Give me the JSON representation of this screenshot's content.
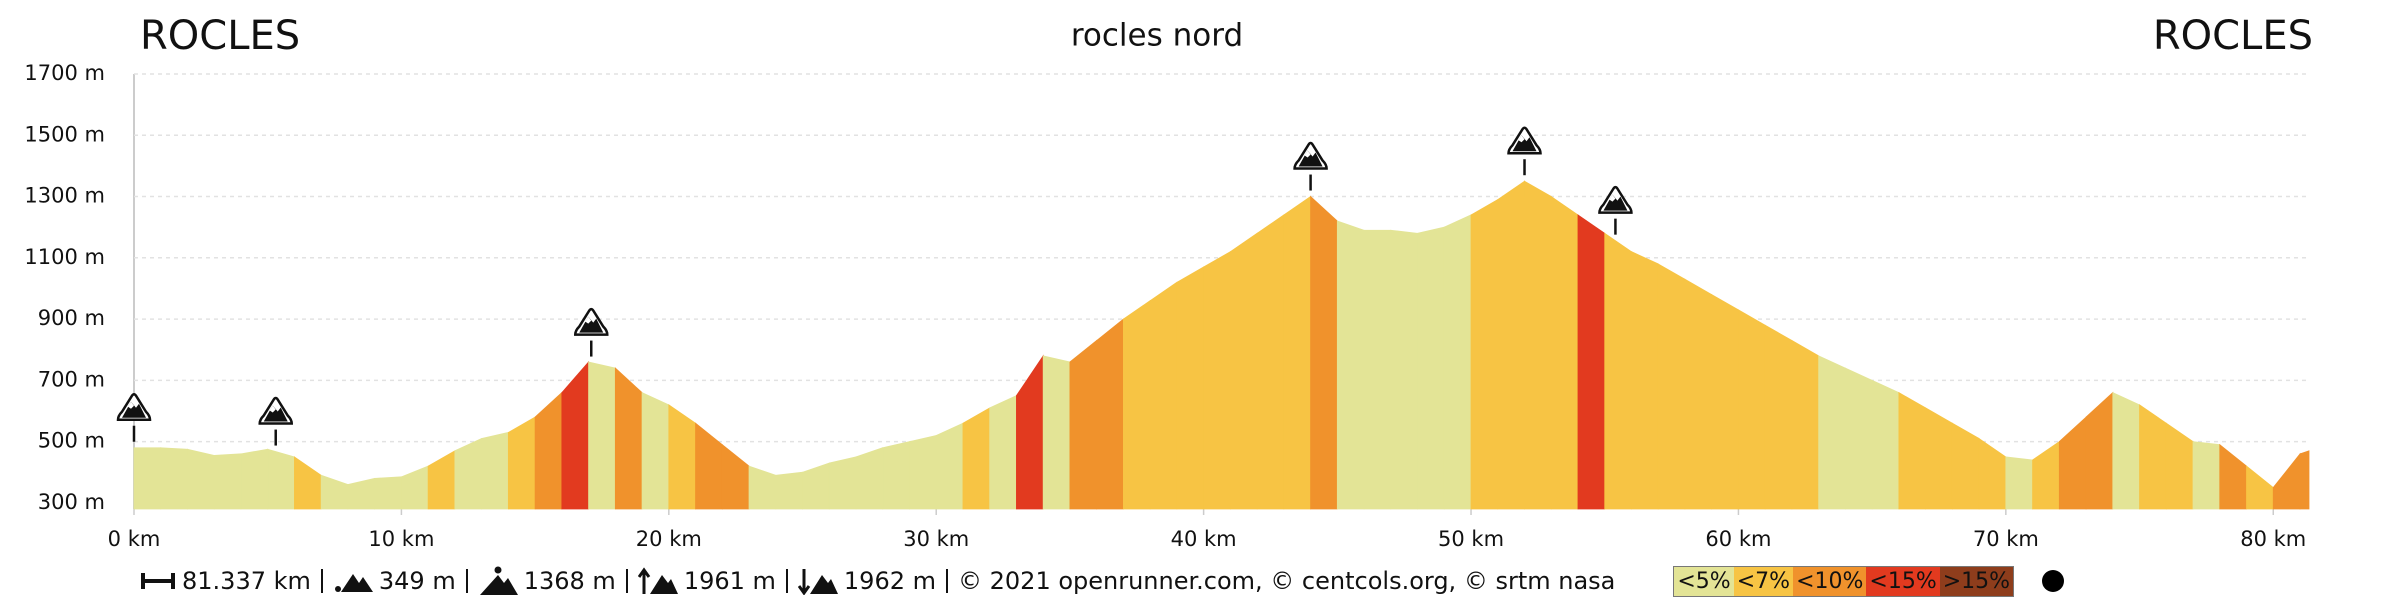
{
  "chart_data": {
    "type": "area",
    "title": "rocles nord",
    "start_label": "ROCLES",
    "end_label": "ROCLES",
    "x": [
      0,
      1,
      2,
      3,
      4,
      5,
      6,
      7,
      8,
      9,
      10,
      11,
      12,
      13,
      14,
      15,
      16,
      17,
      18,
      19,
      20,
      21,
      22,
      23,
      24,
      25,
      26,
      27,
      28,
      29,
      30,
      31,
      32,
      33,
      34,
      35,
      36,
      37,
      38,
      39,
      40,
      41,
      42,
      43,
      44,
      45,
      46,
      47,
      48,
      49,
      50,
      51,
      52,
      53,
      54,
      55,
      56,
      57,
      58,
      59,
      60,
      61,
      62,
      63,
      64,
      65,
      66,
      67,
      68,
      69,
      70,
      71,
      72,
      73,
      74,
      75,
      76,
      77,
      78,
      79,
      80,
      81,
      81.337
    ],
    "values": [
      480,
      480,
      475,
      455,
      460,
      475,
      450,
      390,
      360,
      380,
      385,
      420,
      470,
      510,
      530,
      580,
      660,
      760,
      740,
      660,
      620,
      560,
      490,
      420,
      390,
      400,
      430,
      450,
      480,
      500,
      520,
      560,
      610,
      650,
      780,
      760,
      830,
      900,
      960,
      1020,
      1070,
      1120,
      1180,
      1240,
      1300,
      1220,
      1190,
      1190,
      1180,
      1200,
      1240,
      1290,
      1350,
      1300,
      1240,
      1180,
      1120,
      1080,
      1030,
      980,
      930,
      880,
      830,
      780,
      740,
      700,
      660,
      610,
      560,
      510,
      450,
      440,
      500,
      580,
      660,
      620,
      560,
      500,
      490,
      420,
      350,
      460,
      470
    ],
    "gradient_class": [
      0,
      0,
      0,
      0,
      0,
      0,
      1,
      0,
      0,
      0,
      0,
      1,
      0,
      0,
      1,
      2,
      3,
      0,
      2,
      0,
      1,
      2,
      2,
      0,
      0,
      0,
      0,
      0,
      0,
      0,
      0,
      1,
      0,
      3,
      0,
      2,
      2,
      1,
      1,
      1,
      1,
      1,
      1,
      1,
      2,
      0,
      0,
      0,
      0,
      0,
      1,
      1,
      1,
      1,
      3,
      1,
      1,
      1,
      1,
      1,
      1,
      1,
      1,
      0,
      0,
      0,
      1,
      1,
      1,
      1,
      0,
      1,
      2,
      2,
      0,
      1,
      1,
      0,
      2,
      1,
      2,
      2
    ],
    "gradient_legend": [
      {
        "label": "<5%",
        "color": "#e3e496"
      },
      {
        "label": "<7%",
        "color": "#f7c444"
      },
      {
        "label": "<10%",
        "color": "#f0922c"
      },
      {
        "label": "<15%",
        "color": "#e23a1f"
      },
      {
        "label": ">15%",
        "color": "#8e3d1c"
      }
    ],
    "summit_markers_x": [
      0,
      5.3,
      17.1,
      44,
      52,
      55.4
    ],
    "xlim": [
      0,
      81.337
    ],
    "xticks": [
      {
        "value": 0,
        "label": "0 km"
      },
      {
        "value": 10,
        "label": "10 km"
      },
      {
        "value": 20,
        "label": "20 km"
      },
      {
        "value": 30,
        "label": "30 km"
      },
      {
        "value": 40,
        "label": "40 km"
      },
      {
        "value": 50,
        "label": "50 km"
      },
      {
        "value": 60,
        "label": "60 km"
      },
      {
        "value": 70,
        "label": "70 km"
      },
      {
        "value": 80,
        "label": "80 km"
      }
    ],
    "ylim": [
      280,
      1700
    ],
    "yticks": [
      {
        "value": 300,
        "label": "300 m"
      },
      {
        "value": 500,
        "label": "500 m"
      },
      {
        "value": 700,
        "label": "700 m"
      },
      {
        "value": 900,
        "label": "900 m"
      },
      {
        "value": 1100,
        "label": "1100 m"
      },
      {
        "value": 1300,
        "label": "1300 m"
      },
      {
        "value": 1500,
        "label": "1500 m"
      },
      {
        "value": 1700,
        "label": "1700 m"
      }
    ],
    "grid": true,
    "footer": {
      "distance": "81.337 km",
      "min_altitude": "349 m",
      "max_altitude": "1368 m",
      "ascent": "1961 m",
      "descent": "1962 m",
      "credits": "© 2021 openrunner.com, © centcols.org, © srtm nasa"
    }
  }
}
